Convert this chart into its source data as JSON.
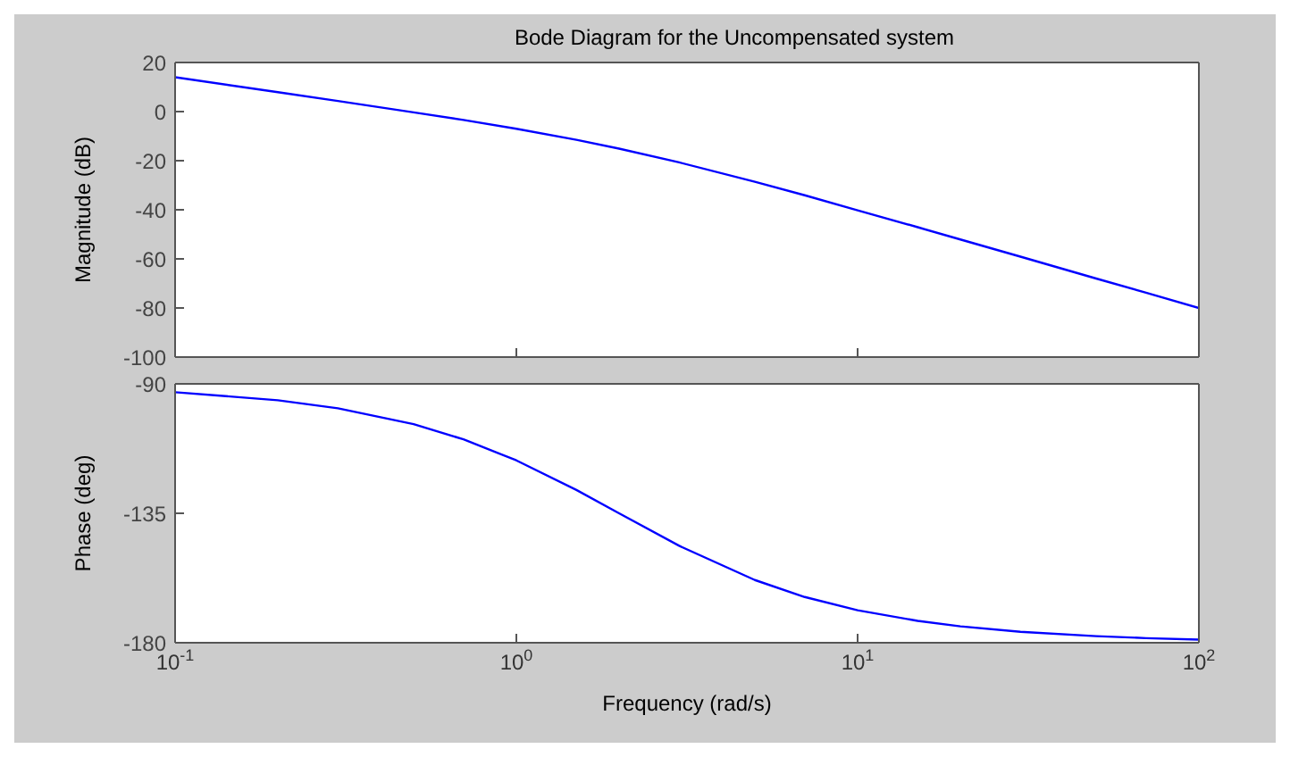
{
  "chart_data": [
    {
      "type": "line",
      "title": "Bode Diagram for the Uncompensated system",
      "ylabel": "Magnitude (dB)",
      "log": "x",
      "grid": false,
      "legend": false,
      "tick_labels": "y",
      "x": [
        0.1,
        0.2,
        0.3,
        0.5,
        0.7,
        1,
        1.5,
        2,
        3,
        5,
        7,
        10,
        15,
        20,
        30,
        50,
        70,
        100
      ],
      "series": [
        {
          "color": "#0000ff",
          "values": [
            14,
            7.9,
            4.3,
            -0.3,
            -3.4,
            -7,
            -11.5,
            -15.1,
            -20.7,
            -28.6,
            -34.1,
            -40.2,
            -47.1,
            -52.1,
            -59.1,
            -68,
            -73.8,
            -80
          ]
        }
      ],
      "xlim": [
        0.1,
        100
      ],
      "xticks": [
        0.1,
        1,
        10,
        100
      ],
      "ylim": [
        -100,
        20
      ],
      "yticks": [
        -100,
        -80,
        -60,
        -40,
        -20,
        0,
        20
      ]
    },
    {
      "type": "line",
      "ylabel": "Phase (deg)",
      "xlabel": "Frequency  (rad/s)",
      "log": "x",
      "grid": false,
      "legend": false,
      "x": [
        0.1,
        0.2,
        0.3,
        0.5,
        0.7,
        1,
        1.5,
        2,
        3,
        5,
        7,
        10,
        15,
        20,
        30,
        50,
        70,
        100
      ],
      "series": [
        {
          "color": "#0000ff",
          "values": [
            -92.9,
            -95.7,
            -98.5,
            -104,
            -109.3,
            -116.6,
            -126.9,
            -135,
            -146.3,
            -158.2,
            -164.1,
            -168.7,
            -172.4,
            -174.3,
            -176.2,
            -177.7,
            -178.4,
            -178.9
          ]
        }
      ],
      "xlim": [
        0.1,
        100
      ],
      "xticks": [
        {
          "value": 0.1,
          "label": "10$^{-1}$"
        },
        {
          "value": 1,
          "label": "10$^{0}$"
        },
        {
          "value": 10,
          "label": "10$^{1}$"
        },
        {
          "value": 100,
          "label": "10$^{2}$"
        }
      ],
      "ylim": [
        -180,
        -90
      ],
      "yticks": [
        -180,
        -135,
        -90
      ]
    }
  ]
}
